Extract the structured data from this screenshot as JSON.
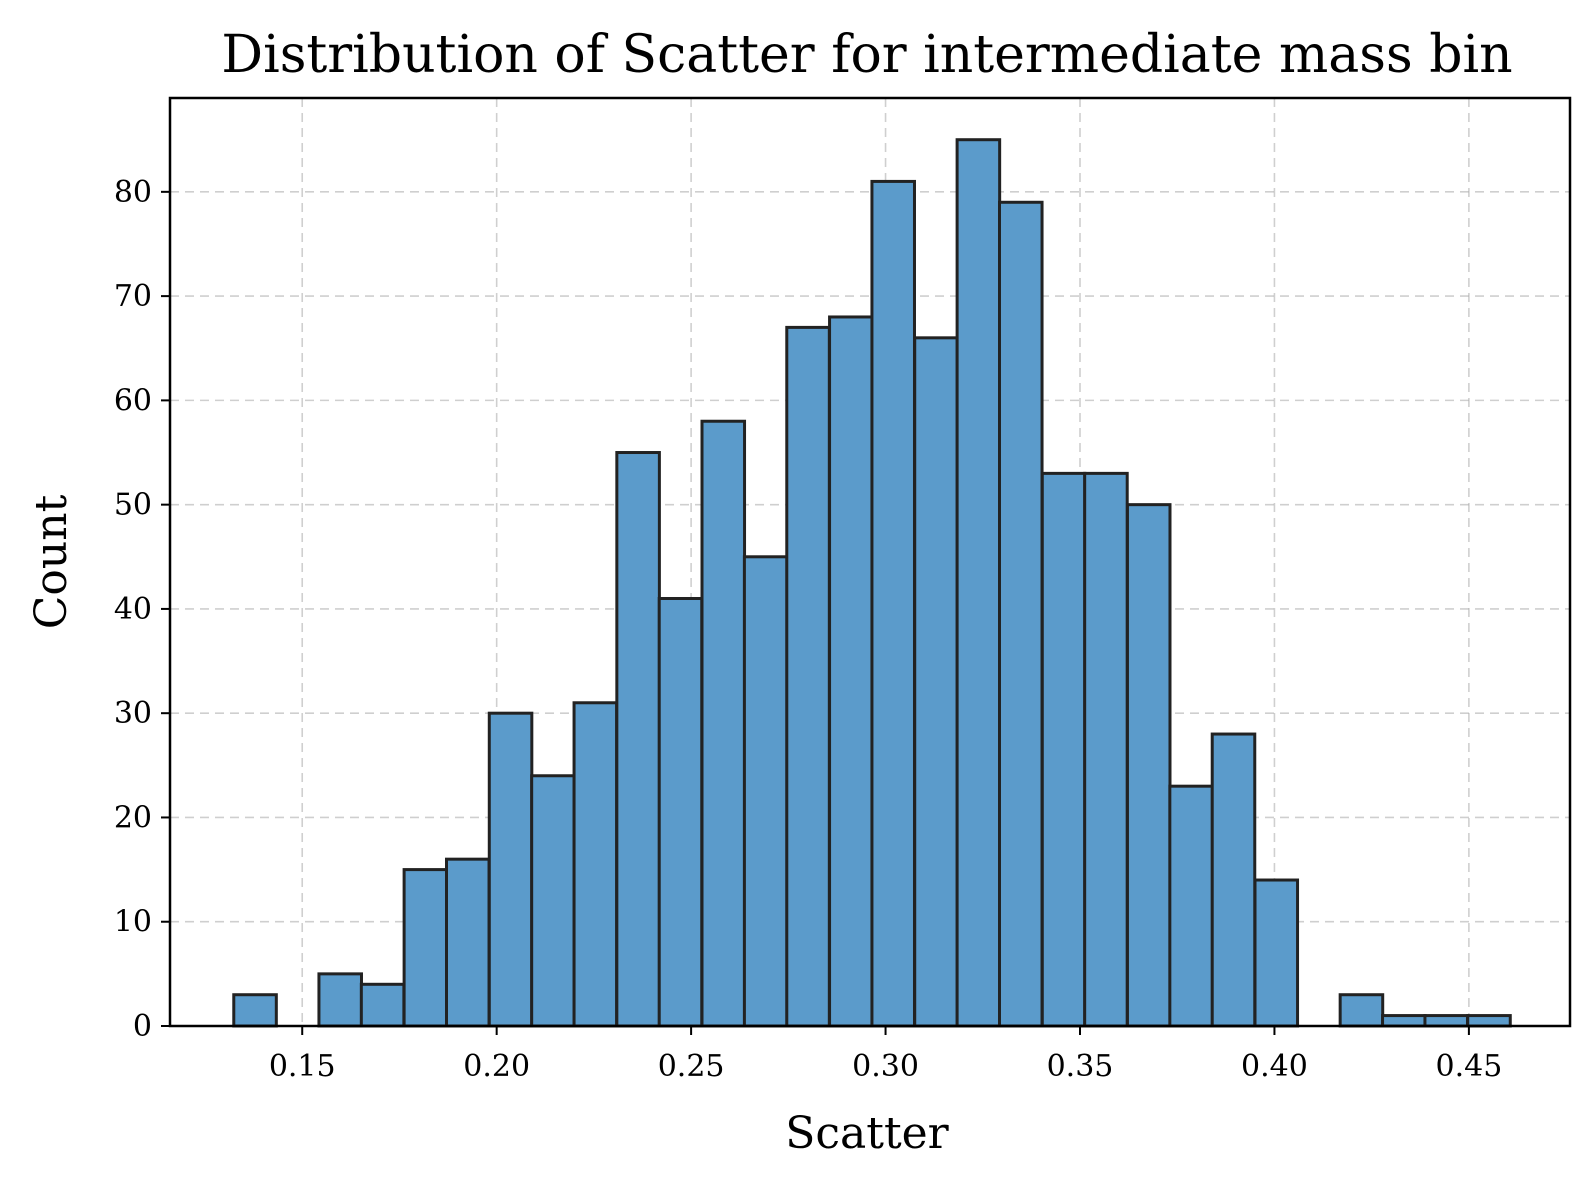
{
  "chart_data": {
    "type": "bar",
    "title": "Distribution of Scatter for intermediate mass bin",
    "xlabel": "Scatter",
    "ylabel": "Count",
    "xlim": [
      0.116,
      0.476
    ],
    "ylim": [
      0,
      89
    ],
    "xticks": [
      0.15,
      0.2,
      0.25,
      0.3,
      0.35,
      0.4,
      0.45
    ],
    "xtick_labels": [
      "0.15",
      "0.20",
      "0.25",
      "0.30",
      "0.35",
      "0.40",
      "0.45"
    ],
    "yticks": [
      0,
      10,
      20,
      30,
      40,
      50,
      60,
      70,
      80
    ],
    "ytick_labels": [
      "0",
      "10",
      "20",
      "30",
      "40",
      "50",
      "60",
      "70",
      "80"
    ],
    "grid": true,
    "bin_width": 0.01094,
    "bin_starts": [
      0.1324,
      0.1434,
      0.1543,
      0.1652,
      0.1762,
      0.1871,
      0.1981,
      0.209,
      0.2199,
      0.2309,
      0.2418,
      0.2528,
      0.2637,
      0.2746,
      0.2856,
      0.2965,
      0.3075,
      0.3184,
      0.3293,
      0.3403,
      0.3512,
      0.3622,
      0.3731,
      0.384,
      0.395,
      0.4059,
      0.4169,
      0.4278,
      0.4387,
      0.4497
    ],
    "values": [
      3,
      0,
      5,
      4,
      15,
      16,
      30,
      24,
      31,
      55,
      41,
      58,
      45,
      67,
      68,
      81,
      66,
      85,
      79,
      53,
      53,
      50,
      23,
      28,
      14,
      0,
      3,
      1,
      1,
      1
    ],
    "colors": {
      "bar_fill": "#5b9bcb",
      "bar_edge": "#222222"
    }
  }
}
